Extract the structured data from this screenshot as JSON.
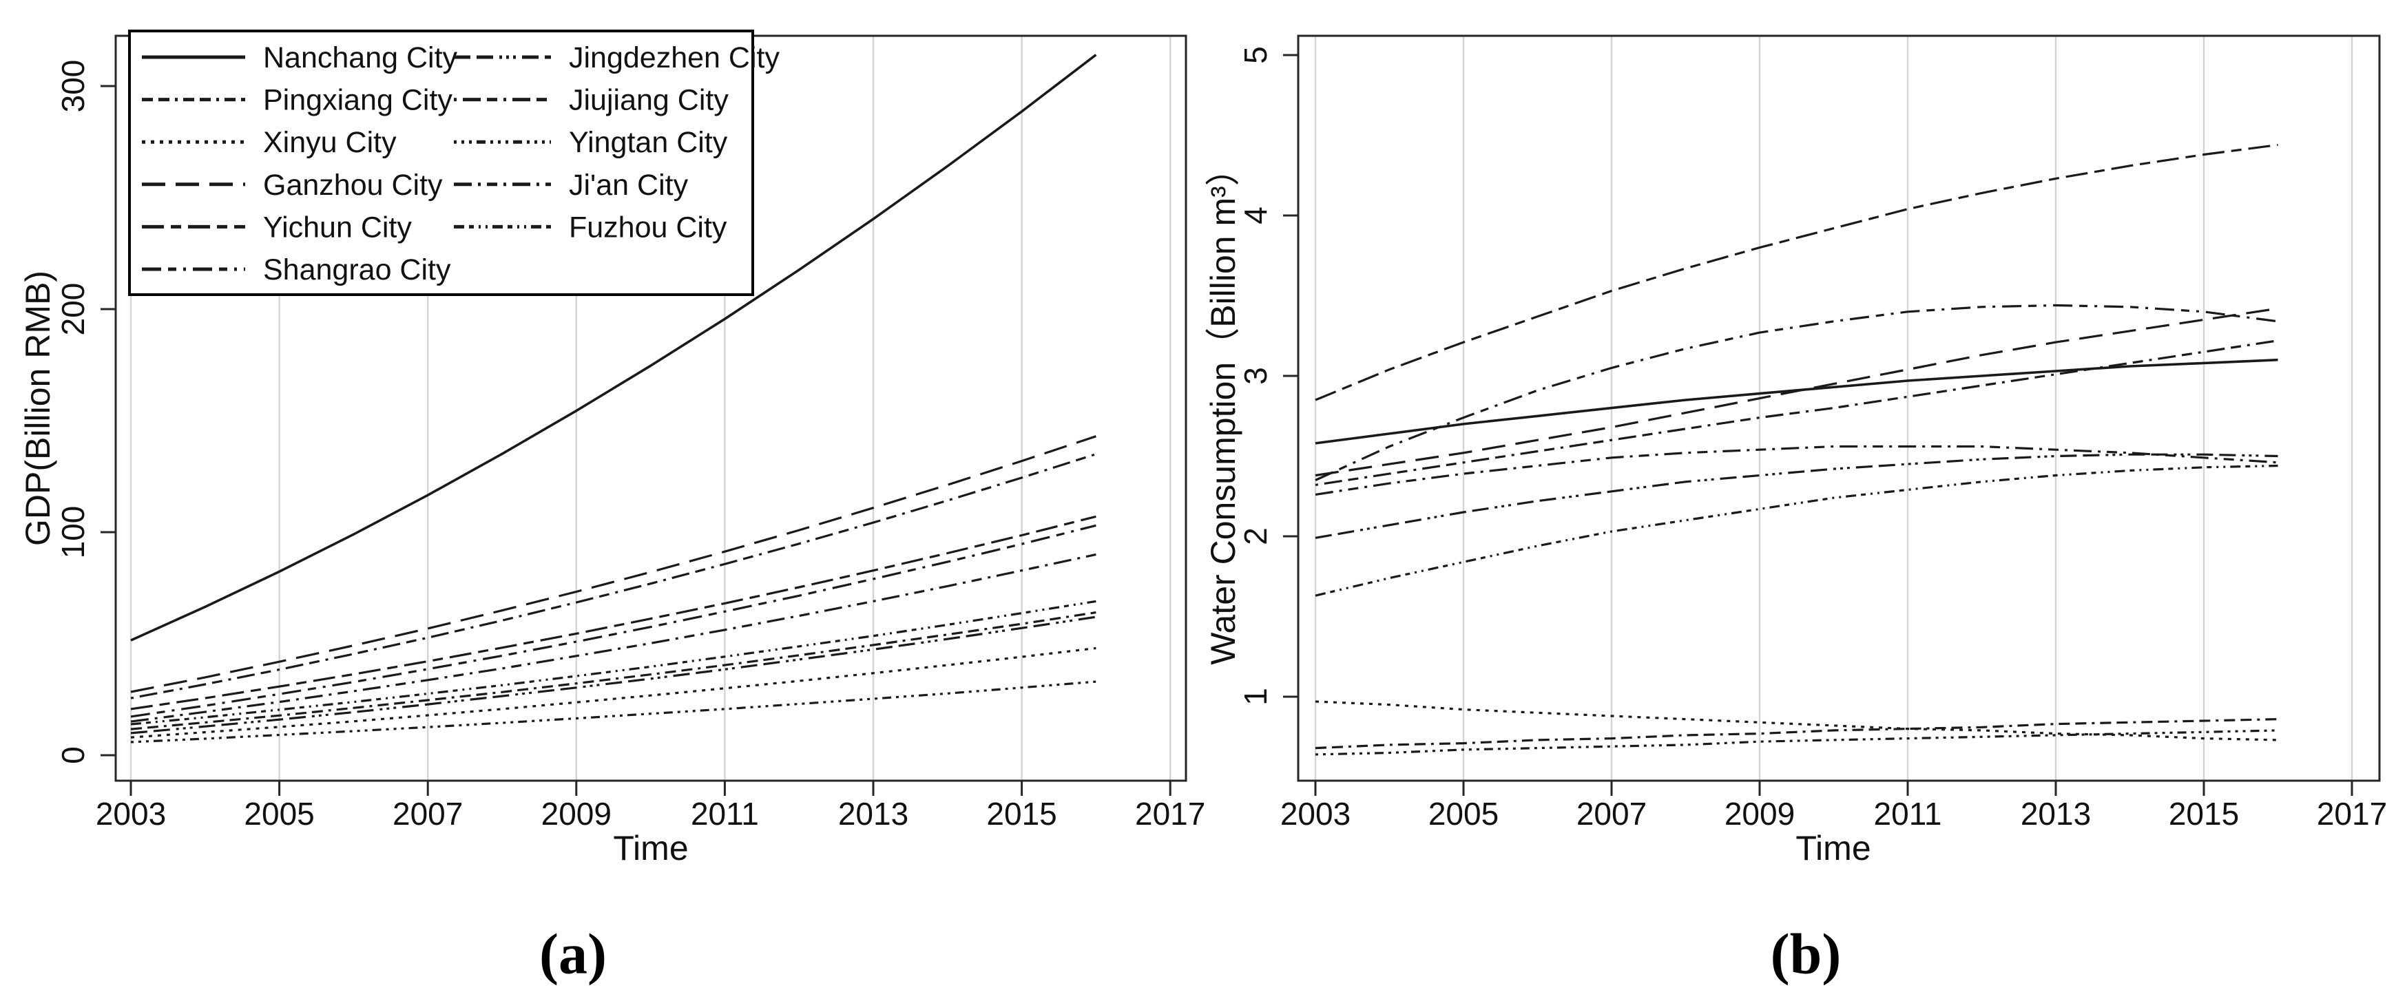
{
  "figure": {
    "background": "#ffffff",
    "captions": {
      "a": "(a)",
      "b": "(b)"
    },
    "x_axis_title": "Time",
    "colors": {
      "line": "#1a1a1a",
      "gridline": "#d4d4d4",
      "border": "#262626",
      "text": "#111111"
    }
  },
  "legend": {
    "position": "top-left-of-panel-a",
    "entries": [
      {
        "label": "Nanchang City",
        "style": "solid"
      },
      {
        "label": "Pingxiang City",
        "style": "dash-dash-dot"
      },
      {
        "label": "Xinyu City",
        "style": "dotted"
      },
      {
        "label": "Ganzhou City",
        "style": "long-dash"
      },
      {
        "label": "Yichun City",
        "style": "long-dash-short-dash"
      },
      {
        "label": "Shangrao City",
        "style": "long-dash-dot-dash"
      },
      {
        "label": "Jingdezhen City",
        "style": "dash-dash-dots"
      },
      {
        "label": "Jiujiang City",
        "style": "dot-long-dash-dash"
      },
      {
        "label": "Yingtan City",
        "style": "dot-dot-dot-dash"
      },
      {
        "label": "Ji'an City",
        "style": "long-dash-dot-dash-dot"
      },
      {
        "label": "Fuzhou City",
        "style": "dash-dash-dot-dot"
      }
    ]
  },
  "line_styles": {
    "solid": "",
    "dash-dash-dot": "16 8 16 8 4 8",
    "dotted": "5 8",
    "long-dash": "34 15",
    "long-dash-short-dash": "32 10 15 10",
    "long-dash-dot-dash": "28 10 12 10 4 10",
    "dash-dash-dots": "24 9 24 9 4 6 4 6 4 9",
    "dot-long-dash-dash": "4 9 26 9 15 9",
    "dot-dot-dot-dash": "4 7 4 7 4 7 13 7",
    "long-dash-dot-dash-dot": "26 9 4 9 15 9 4 9",
    "dash-dash-dot-dot": "15 7 7 7 3 7 3 7"
  },
  "chart_data": [
    {
      "id": "a",
      "type": "line",
      "title": "",
      "xlabel": "Time",
      "ylabel": "GDP(Billion RMB)",
      "caption": "(a)",
      "grid": "vertical-only",
      "legend_position": "top-left",
      "x_ticks": [
        2003,
        2005,
        2007,
        2009,
        2011,
        2013,
        2015,
        2017
      ],
      "x_tick_labels": [
        "2003",
        "2005",
        "2007",
        "2009",
        "2011",
        "2013",
        "2015",
        "2017"
      ],
      "y_ticks": [
        0,
        100,
        200,
        300
      ],
      "y_tick_labels": [
        "0",
        "100",
        "200",
        "300"
      ],
      "xlim": [
        2002.8,
        2017.3
      ],
      "ylim": [
        -11,
        322
      ],
      "years": [
        2003,
        2004,
        2005,
        2006,
        2007,
        2008,
        2009,
        2010,
        2011,
        2012,
        2013,
        2014,
        2015,
        2016
      ],
      "series": [
        {
          "name": "Nanchang City",
          "style": "solid",
          "values": [
            51.5,
            66.5,
            82.3,
            99.0,
            116.6,
            135.1,
            154.4,
            174.6,
            195.6,
            217.6,
            240.4,
            264.1,
            288.6,
            314
          ]
        },
        {
          "name": "Pingxiang City",
          "style": "dash-dash-dot",
          "values": [
            11.7,
            14.7,
            17.8,
            21.2,
            24.7,
            28.3,
            32.2,
            36.2,
            40.4,
            44.8,
            49.4,
            54.1,
            58.9,
            64
          ]
        },
        {
          "name": "Xinyu City",
          "style": "dotted",
          "values": [
            8.0,
            10.3,
            12.7,
            15.2,
            17.9,
            20.7,
            23.7,
            26.8,
            30.0,
            33.3,
            36.8,
            40.4,
            44.1,
            48
          ]
        },
        {
          "name": "Ganzhou City",
          "style": "long-dash",
          "values": [
            28.4,
            34.9,
            41.9,
            49.2,
            56.8,
            64.9,
            73.3,
            82.1,
            91.3,
            100.9,
            110.9,
            121.2,
            131.9,
            143
          ]
        },
        {
          "name": "Yichun City",
          "style": "long-dash-short-dash",
          "values": [
            20.7,
            25.6,
            30.8,
            36.3,
            42.1,
            48.2,
            54.5,
            61.2,
            68.1,
            75.3,
            82.8,
            90.6,
            98.6,
            107
          ]
        },
        {
          "name": "Shangrao City",
          "style": "long-dash-dot-dash",
          "values": [
            17.3,
            22.2,
            27.4,
            32.8,
            38.6,
            44.6,
            50.9,
            57.5,
            64.4,
            71.5,
            79.0,
            86.7,
            94.7,
            103
          ]
        },
        {
          "name": "Jingdezhen City",
          "style": "dash-dash-dots",
          "values": [
            9.9,
            12.9,
            16.0,
            19.3,
            22.8,
            26.5,
            30.3,
            34.3,
            38.5,
            42.9,
            47.4,
            52.1,
            57.0,
            62
          ]
        },
        {
          "name": "Jiujiang City",
          "style": "dot-long-dash-dash",
          "values": [
            25.6,
            31.8,
            38.4,
            45.4,
            52.7,
            60.4,
            68.5,
            76.9,
            85.7,
            94.8,
            104.3,
            114.2,
            124.4,
            135
          ]
        },
        {
          "name": "Yingtan City",
          "style": "dot-dot-dot-dash",
          "values": [
            5.9,
            7.4,
            9.1,
            10.8,
            12.6,
            14.5,
            16.5,
            18.6,
            20.7,
            23.0,
            25.3,
            27.7,
            30.3,
            33
          ]
        },
        {
          "name": "Ji'an City",
          "style": "long-dash-dot-dash-dot",
          "values": [
            15.1,
            19.4,
            23.9,
            28.7,
            33.7,
            38.9,
            44.5,
            50.2,
            56.2,
            62.5,
            69.0,
            75.8,
            82.8,
            90
          ]
        },
        {
          "name": "Fuzhou City",
          "style": "dash-dash-dot-dot",
          "values": [
            13.9,
            17.0,
            20.4,
            23.9,
            27.6,
            31.4,
            35.5,
            39.7,
            44.2,
            48.8,
            53.5,
            58.5,
            63.7,
            69
          ]
        }
      ]
    },
    {
      "id": "b",
      "type": "line",
      "title": "",
      "xlabel": "Time",
      "ylabel": "Water Consumption（Billion m³）",
      "caption": "(b)",
      "grid": "vertical-only",
      "legend_position": "none",
      "x_ticks": [
        2003,
        2005,
        2007,
        2009,
        2011,
        2013,
        2015,
        2017
      ],
      "x_tick_labels": [
        "2003",
        "2005",
        "2007",
        "2009",
        "2011",
        "2013",
        "2015",
        "2017"
      ],
      "y_ticks": [
        1,
        2,
        3,
        4,
        5
      ],
      "y_tick_labels": [
        "1",
        "2",
        "3",
        "4",
        "5"
      ],
      "xlim": [
        2002.8,
        2017.3
      ],
      "ylim": [
        0.55,
        5.15
      ],
      "years": [
        2003,
        2004,
        2005,
        2006,
        2007,
        2008,
        2009,
        2010,
        2011,
        2012,
        2013,
        2014,
        2015,
        2016
      ],
      "series": [
        {
          "name": "Nanchang City",
          "style": "solid",
          "values": [
            2.58,
            2.64,
            2.7,
            2.75,
            2.8,
            2.85,
            2.89,
            2.93,
            2.97,
            3.0,
            3.03,
            3.06,
            3.08,
            3.1
          ]
        },
        {
          "name": "Pingxiang City",
          "style": "dash-dash-dot",
          "values": [
            0.68,
            0.7,
            0.71,
            0.73,
            0.74,
            0.76,
            0.77,
            0.79,
            0.8,
            0.81,
            0.83,
            0.84,
            0.85,
            0.86
          ]
        },
        {
          "name": "Xinyu City",
          "style": "dotted",
          "values": [
            0.97,
            0.95,
            0.92,
            0.9,
            0.88,
            0.86,
            0.84,
            0.82,
            0.8,
            0.79,
            0.77,
            0.76,
            0.74,
            0.73
          ]
        },
        {
          "name": "Ganzhou City",
          "style": "long-dash",
          "values": [
            2.38,
            2.45,
            2.52,
            2.6,
            2.68,
            2.77,
            2.86,
            2.95,
            3.04,
            3.13,
            3.21,
            3.28,
            3.35,
            3.42
          ]
        },
        {
          "name": "Yichun City",
          "style": "long-dash-short-dash",
          "values": [
            2.85,
            3.04,
            3.21,
            3.37,
            3.53,
            3.67,
            3.8,
            3.92,
            4.04,
            4.14,
            4.23,
            4.31,
            4.38,
            4.44
          ]
        },
        {
          "name": "Shangrao City",
          "style": "long-dash-dot-dash",
          "values": [
            2.35,
            2.56,
            2.74,
            2.91,
            3.05,
            3.17,
            3.27,
            3.34,
            3.4,
            3.43,
            3.44,
            3.43,
            3.4,
            3.34
          ]
        },
        {
          "name": "Jingdezhen City",
          "style": "dash-dash-dots",
          "values": [
            1.99,
            2.07,
            2.15,
            2.22,
            2.28,
            2.34,
            2.38,
            2.42,
            2.45,
            2.48,
            2.5,
            2.51,
            2.51,
            2.5
          ]
        },
        {
          "name": "Jiujiang City",
          "style": "dot-long-dash-dash",
          "values": [
            2.32,
            2.39,
            2.46,
            2.53,
            2.6,
            2.67,
            2.74,
            2.8,
            2.87,
            2.94,
            3.01,
            3.08,
            3.15,
            3.22
          ]
        },
        {
          "name": "Yingtan City",
          "style": "dot-dot-dot-dash",
          "values": [
            0.64,
            0.65,
            0.67,
            0.68,
            0.69,
            0.7,
            0.72,
            0.73,
            0.74,
            0.75,
            0.76,
            0.77,
            0.78,
            0.79
          ]
        },
        {
          "name": "Ji'an City",
          "style": "long-dash-dot-dash-dot",
          "values": [
            2.26,
            2.33,
            2.39,
            2.44,
            2.49,
            2.52,
            2.54,
            2.56,
            2.56,
            2.56,
            2.54,
            2.52,
            2.49,
            2.46
          ]
        },
        {
          "name": "Fuzhou City",
          "style": "dash-dash-dot-dot",
          "values": [
            1.63,
            1.74,
            1.84,
            1.94,
            2.03,
            2.1,
            2.17,
            2.24,
            2.29,
            2.34,
            2.38,
            2.41,
            2.43,
            2.44
          ]
        }
      ]
    }
  ]
}
